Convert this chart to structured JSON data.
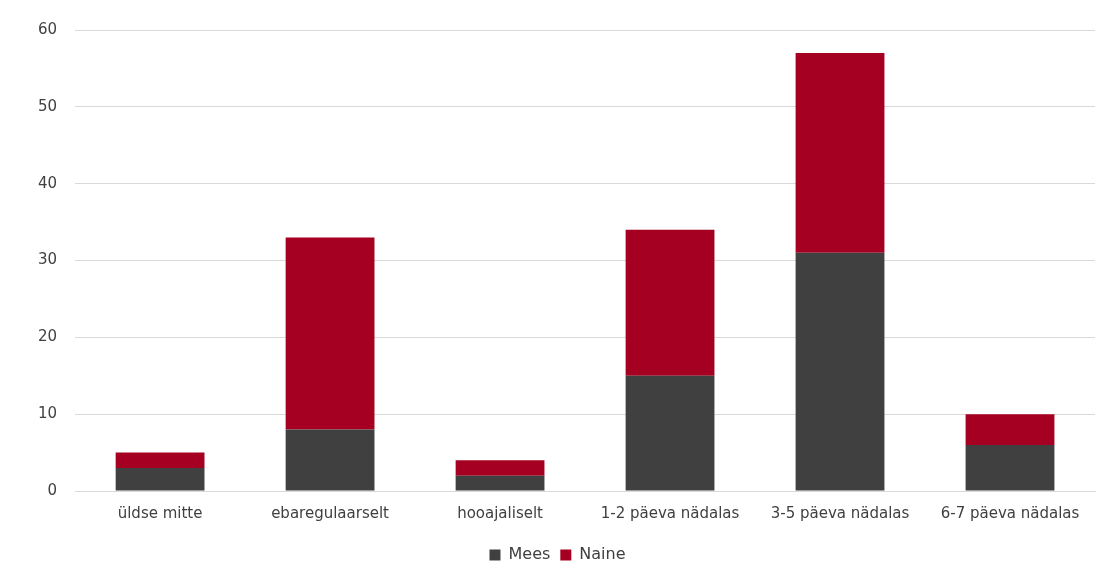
{
  "chart_data": {
    "type": "bar",
    "stacked": true,
    "categories": [
      "üldse mitte",
      "ebaregulaarselt",
      "hooajaliselt",
      "1-2 päeva nädalas",
      "3-5 päeva nädalas",
      "6-7 päeva nädalas"
    ],
    "series": [
      {
        "name": "Mees",
        "color": "#404040",
        "values": [
          3,
          8,
          2,
          15,
          31,
          6
        ]
      },
      {
        "name": "Naine",
        "color": "#a50021",
        "values": [
          2,
          25,
          2,
          19,
          26,
          4
        ]
      }
    ],
    "ylim": [
      0,
      60
    ],
    "yticks": [
      0,
      10,
      20,
      30,
      40,
      50,
      60
    ],
    "grid": "y",
    "legend": "bottom"
  }
}
